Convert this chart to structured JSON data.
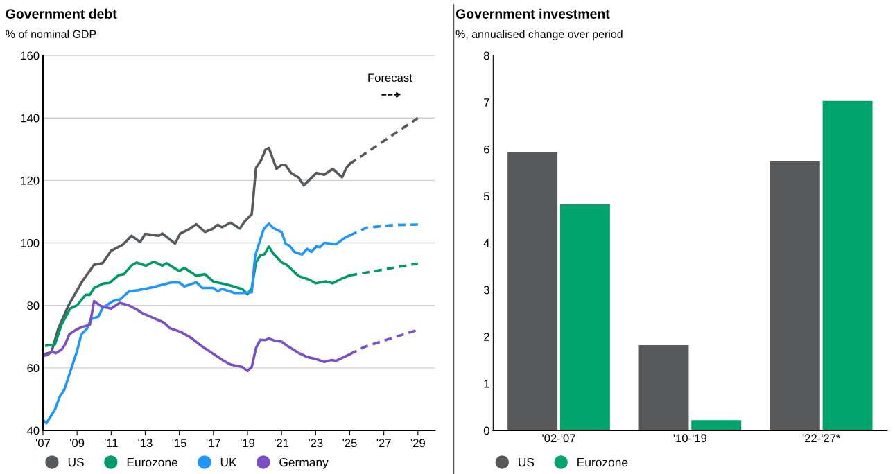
{
  "chart_data": [
    {
      "type": "line",
      "title": "Government debt",
      "subtitle": "% of nominal GDP",
      "line_style": "solid",
      "marker": "none",
      "grid": "y",
      "legend": "bottom",
      "annotations": [
        "Forecast"
      ],
      "xlim": [
        2007,
        2030
      ],
      "ylim": [
        40,
        160
      ],
      "xticks": [
        {
          "value": 2007,
          "label": "'07"
        },
        {
          "value": 2009,
          "label": "'09"
        },
        {
          "value": 2011,
          "label": "'11"
        },
        {
          "value": 2013,
          "label": "'13"
        },
        {
          "value": 2015,
          "label": "'15"
        },
        {
          "value": 2017,
          "label": "'17"
        },
        {
          "value": 2019,
          "label": "'19"
        },
        {
          "value": 2021,
          "label": "'21"
        },
        {
          "value": 2023,
          "label": "'23"
        },
        {
          "value": 2025,
          "label": "'25"
        },
        {
          "value": 2027,
          "label": "'27"
        },
        {
          "value": 2029,
          "label": "'29"
        }
      ],
      "yticks": [
        40,
        60,
        80,
        100,
        120,
        140,
        160
      ],
      "series": [
        {
          "name": "US",
          "color": "#555a5e",
          "x": [
            2007.0,
            2007.5,
            2007.9,
            2008.5,
            2009.3,
            2010.0,
            2010.5,
            2011.0,
            2011.7,
            2012.2,
            2012.7,
            2013.0,
            2013.8,
            2014.0,
            2014.75,
            2015.05,
            2015.6,
            2016.0,
            2016.5,
            2016.95,
            2017.25,
            2017.5,
            2018.0,
            2018.55,
            2018.85,
            2019.25,
            2019.5,
            2019.8,
            2020.05,
            2020.25,
            2020.7,
            2021.0,
            2021.25,
            2021.55,
            2022.0,
            2022.3,
            2023.05,
            2023.5,
            2024.0,
            2024.55,
            2024.8,
            2025.0
          ],
          "values": [
            64.3,
            65,
            72.6,
            80,
            87.7,
            93,
            93.5,
            97.5,
            99.5,
            102.3,
            100.3,
            102.9,
            102.3,
            103,
            99.8,
            103,
            104.5,
            106,
            103.5,
            104.5,
            105.8,
            105,
            106.5,
            104.6,
            107,
            109.2,
            124,
            126.5,
            129.8,
            130.4,
            123.7,
            125,
            124.8,
            122.4,
            120.9,
            118.4,
            122.4,
            121.8,
            123.7,
            121,
            124,
            125.3
          ]
        },
        {
          "name": "Eurozone",
          "color": "#009a6a",
          "x": [
            2007.2,
            2007.7,
            2008.1,
            2008.6,
            2009.0,
            2009.5,
            2009.75,
            2010.0,
            2010.55,
            2010.9,
            2011.45,
            2011.75,
            2012.2,
            2012.5,
            2013.05,
            2013.5,
            2014.0,
            2014.25,
            2015.0,
            2015.3,
            2016.0,
            2016.5,
            2017.0,
            2017.7,
            2018.25,
            2018.7,
            2019.0,
            2019.25,
            2019.5,
            2019.75,
            2020.0,
            2020.25,
            2020.5,
            2020.7,
            2021.0,
            2021.3,
            2022.0,
            2022.65,
            2023.0,
            2023.6,
            2024.0,
            2024.5,
            2025.0
          ],
          "values": [
            67.1,
            67.5,
            74,
            79,
            80,
            83.4,
            83.4,
            85.6,
            87,
            87.2,
            89.7,
            90,
            92.8,
            93.7,
            92.7,
            94,
            92.7,
            93.5,
            91,
            92,
            89.5,
            90,
            87.6,
            86.8,
            86,
            85.2,
            83.6,
            85.6,
            93.8,
            96,
            96.4,
            98.8,
            96.7,
            95.5,
            93.8,
            93,
            89.4,
            88.2,
            87.1,
            87.7,
            87.1,
            88.5,
            89.6
          ]
        },
        {
          "name": "UK",
          "color": "#1e96fc",
          "x": [
            2007.0,
            2007.2,
            2007.7,
            2008.0,
            2008.25,
            2009.0,
            2009.25,
            2009.6,
            2009.8,
            2010.25,
            2010.5,
            2011.1,
            2011.55,
            2012.05,
            2012.6,
            2013.0,
            2013.5,
            2014.0,
            2014.5,
            2015.0,
            2015.3,
            2016.0,
            2016.35,
            2017.0,
            2017.25,
            2017.5,
            2018.25,
            2018.7,
            2019.25,
            2019.45,
            2019.95,
            2020.25,
            2020.5,
            2021.0,
            2021.25,
            2021.45,
            2021.75,
            2022.2,
            2022.5,
            2022.75,
            2023.05,
            2023.25,
            2023.5,
            2024.2,
            2024.7,
            2025.0
          ],
          "values": [
            43.3,
            42.3,
            46.6,
            51,
            53,
            65.4,
            70.7,
            72.7,
            75.6,
            76.4,
            79.2,
            81.4,
            82,
            84.5,
            84.9,
            85.3,
            85.9,
            86.6,
            87.3,
            87.3,
            86.1,
            87.4,
            85.6,
            85.6,
            84.5,
            85.3,
            84,
            84,
            84.2,
            95.9,
            104.4,
            106.2,
            104.8,
            103.5,
            99.6,
            99.2,
            97.1,
            96.3,
            98.1,
            97.1,
            98.9,
            98.6,
            100,
            99.6,
            101.6,
            102.4
          ]
        },
        {
          "name": "Germany",
          "color": "#7a4fc8",
          "x": [
            2007.0,
            2007.25,
            2007.55,
            2007.75,
            2008.1,
            2008.3,
            2008.55,
            2009.0,
            2009.35,
            2009.75,
            2010.0,
            2010.4,
            2011.0,
            2011.5,
            2012.05,
            2012.5,
            2012.8,
            2013.35,
            2014.1,
            2014.45,
            2015.05,
            2015.7,
            2016.3,
            2017.05,
            2017.6,
            2018.0,
            2018.7,
            2019.0,
            2019.25,
            2019.5,
            2019.75,
            2020.05,
            2020.25,
            2020.6,
            2021.0,
            2021.3,
            2022.0,
            2022.5,
            2023.05,
            2023.5,
            2023.9,
            2024.2,
            2025.0
          ],
          "values": [
            63.9,
            64.1,
            65.3,
            64.7,
            65.9,
            67.5,
            70.8,
            72.4,
            73.2,
            73.8,
            81.4,
            79.8,
            79,
            80.8,
            80,
            78.7,
            77.6,
            76.3,
            74.5,
            72.7,
            71.6,
            69.6,
            67,
            64.3,
            62.3,
            61.1,
            60.3,
            59,
            60.3,
            66.4,
            69,
            68.9,
            69.4,
            68.7,
            68.4,
            67.2,
            64.8,
            63.5,
            62.8,
            61.9,
            62.5,
            62.3,
            64.4
          ]
        },
        {
          "color": "#555a5e",
          "line_style": "dashed",
          "x": [
            2025.0,
            2029.0
          ],
          "values": [
            125.3,
            140
          ]
        },
        {
          "color": "#009a6a",
          "line_style": "dashed",
          "x": [
            2025.0,
            2029.0
          ],
          "values": [
            89.6,
            93.4
          ]
        },
        {
          "color": "#1e96fc",
          "line_style": "dashed",
          "x": [
            2025.0,
            2026.0,
            2027.55,
            2029.0
          ],
          "values": [
            102.4,
            104.9,
            105.7,
            105.9
          ]
        },
        {
          "color": "#7a4fc8",
          "line_style": "dashed",
          "x": [
            2025.0,
            2025.9,
            2029.0
          ],
          "values": [
            64.4,
            66.8,
            72.2
          ]
        }
      ]
    },
    {
      "type": "bar",
      "title": "Government investment",
      "subtitle": "%, annualised change over period",
      "grid": false,
      "legend": "bottom",
      "categories": [
        "'02-'07",
        "'10-'19",
        "'22-'27*"
      ],
      "ylim": [
        0,
        8
      ],
      "yticks": [
        0,
        1,
        2,
        3,
        4,
        5,
        6,
        7,
        8
      ],
      "series": [
        {
          "name": "US",
          "color": "#58595b",
          "values": [
            5.93,
            1.82,
            5.74
          ]
        },
        {
          "name": "Eurozone",
          "color": "#00a36c",
          "values": [
            4.82,
            0.22,
            7.03
          ]
        }
      ]
    }
  ]
}
